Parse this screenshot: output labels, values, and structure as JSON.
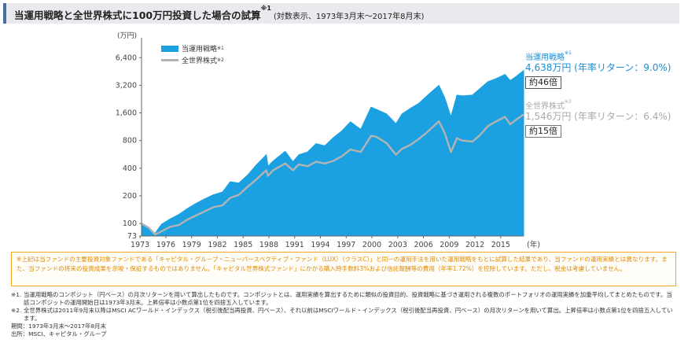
{
  "title": {
    "main": "当運用戦略と全世界株式に100万円投資した場合の試算",
    "sup": "※1",
    "sub": "(対数表示、1973年3月末〜2017年8月末)"
  },
  "chart_data": {
    "type": "area",
    "y_scale": "log",
    "unit_label": "(万円)",
    "x_axis_suffix": "(年)",
    "ylim": [
      73,
      9000
    ],
    "xlim": [
      1973.17,
      2017.67
    ],
    "x_tick_labels": [
      "1973",
      "1976",
      "1979",
      "1982",
      "1985",
      "1988",
      "1991",
      "1994",
      "1997",
      "2000",
      "2003",
      "2006",
      "2009",
      "2012",
      "2015"
    ],
    "x_tick_values": [
      1973,
      1976,
      1979,
      1982,
      1985,
      1988,
      1991,
      1994,
      1997,
      2000,
      2003,
      2006,
      2009,
      2012,
      2015
    ],
    "y_tick_labels": [
      "73",
      "100",
      "200",
      "400",
      "800",
      "1,600",
      "3,200",
      "6,400"
    ],
    "y_tick_values": [
      73,
      100,
      200,
      400,
      800,
      1600,
      3200,
      6400
    ],
    "series": [
      {
        "name": "当運用戦略",
        "sup": "※1",
        "style": "area",
        "color": "#1ba1e2",
        "x": [
          1973.17,
          1974.0,
          1974.75,
          1975.5,
          1976.5,
          1977.5,
          1978.5,
          1979.5,
          1980.5,
          1981.5,
          1982.6,
          1983.5,
          1984.5,
          1985.5,
          1986.5,
          1987.7,
          1987.9,
          1988.5,
          1989.9,
          1990.8,
          1991.5,
          1992.5,
          1993.5,
          1994.5,
          1995.5,
          1996.5,
          1997.5,
          1998.7,
          1999.9,
          2000.5,
          2001.7,
          2002.8,
          2003.5,
          2004.5,
          2005.5,
          2006.5,
          2007.8,
          2008.5,
          2009.2,
          2009.9,
          2010.5,
          2011.7,
          2012.5,
          2013.5,
          2014.5,
          2015.5,
          2016.1,
          2016.8,
          2017.67
        ],
        "values": [
          100,
          90,
          78,
          98,
          112,
          125,
          145,
          165,
          185,
          205,
          220,
          285,
          275,
          335,
          430,
          560,
          420,
          480,
          610,
          470,
          560,
          600,
          740,
          700,
          860,
          1020,
          1280,
          1060,
          1850,
          1750,
          1560,
          1220,
          1560,
          1800,
          2050,
          2500,
          3200,
          2300,
          1450,
          2500,
          2450,
          2500,
          2900,
          3500,
          3800,
          4200,
          3600,
          4000,
          4638
        ]
      },
      {
        "name": "全世界株式",
        "sup": "※2",
        "style": "line",
        "color": "#b3b3b3",
        "x": [
          1973.17,
          1974.0,
          1974.75,
          1975.5,
          1976.5,
          1977.5,
          1978.5,
          1979.5,
          1980.5,
          1981.5,
          1982.6,
          1983.5,
          1984.5,
          1985.5,
          1986.5,
          1987.7,
          1987.9,
          1988.5,
          1989.9,
          1990.8,
          1991.5,
          1992.5,
          1993.5,
          1994.5,
          1995.5,
          1996.5,
          1997.5,
          1998.7,
          1999.9,
          2000.5,
          2001.7,
          2002.8,
          2003.5,
          2004.5,
          2005.5,
          2006.5,
          2007.8,
          2008.5,
          2009.2,
          2009.9,
          2010.5,
          2011.7,
          2012.5,
          2013.5,
          2014.5,
          2015.5,
          2016.1,
          2016.8,
          2017.67
        ],
        "values": [
          100,
          90,
          76,
          82,
          92,
          96,
          110,
          122,
          135,
          150,
          158,
          190,
          205,
          250,
          300,
          380,
          330,
          380,
          450,
          380,
          440,
          420,
          470,
          450,
          480,
          540,
          640,
          600,
          900,
          880,
          750,
          560,
          650,
          720,
          840,
          1000,
          1300,
          950,
          600,
          850,
          800,
          780,
          900,
          1150,
          1300,
          1450,
          1200,
          1350,
          1546
        ]
      }
    ]
  },
  "legend": {
    "main_label": "当運用戦略",
    "main_sup": "※1",
    "world_label": "全世界株式",
    "world_sup": "※2"
  },
  "annotations": {
    "main": {
      "name": "当運用戦略",
      "sup": "※1",
      "value": "4,638万円 (年率リターン：9.0%)",
      "multiple": "約46倍"
    },
    "world": {
      "name": "全世界株式",
      "sup": "※2",
      "value": "1,546万円 (年率リターン：6.4%)",
      "multiple": "約15倍"
    }
  },
  "notice": "※上記は当ファンドの主要投資対象ファンドである「キャピタル・グループ・ニューパースペクティブ・ファンド（LUX）（クラスC）」と同一の運用手法を用いた運用戦略をもとに試算した結果であり、当ファンドの運用実績とは異なります。また、当ファンドの将来の投資成果を示唆・保証するものではありません。「キャピタル世界株式ファンド」にかかる購入時手数料3%および信託報酬等の費用（年率1.72%）を控除しています。ただし、税金は考慮していません。",
  "footnotes": [
    {
      "mark": "※1.",
      "text": "当運用戦略のコンポジット（円ベース）の月次リターンを用いて算出したものです。コンポジットとは、運用実績を算出するために類似の投資目的、投資戦略に基づき運用される複数のポートフォリオの運用実績を加重平均してまとめたものです。当該コンポジットの運用開始日は1973年3月末。上昇倍率は小数点第1位を四捨五入しています。"
    },
    {
      "mark": "※2.",
      "text": "全世界株式は2011年9月末以降はMSCI ACワールド・インデックス（税引後配当再投資、円ベース）、それ以前はMSCIワールド・インデックス（税引後配当再投資、円ベース）の月次リターンを用いて算出。上昇倍率は小数点第1位を四捨五入しています。"
    }
  ],
  "period": "期間：1973年3月末〜2017年8月末",
  "source": "出所：MSCI、キャピタル・グループ"
}
